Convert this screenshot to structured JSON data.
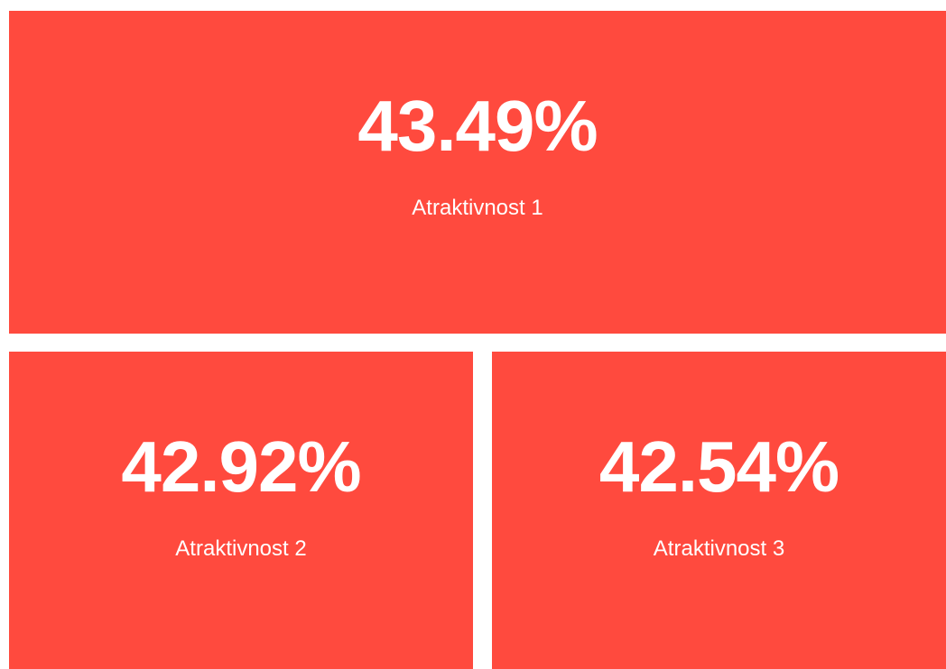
{
  "tiles": [
    {
      "value": "43.49%",
      "label": "Atraktivnost 1"
    },
    {
      "value": "42.92%",
      "label": "Atraktivnost 2"
    },
    {
      "value": "42.54%",
      "label": "Atraktivnost 3"
    }
  ]
}
